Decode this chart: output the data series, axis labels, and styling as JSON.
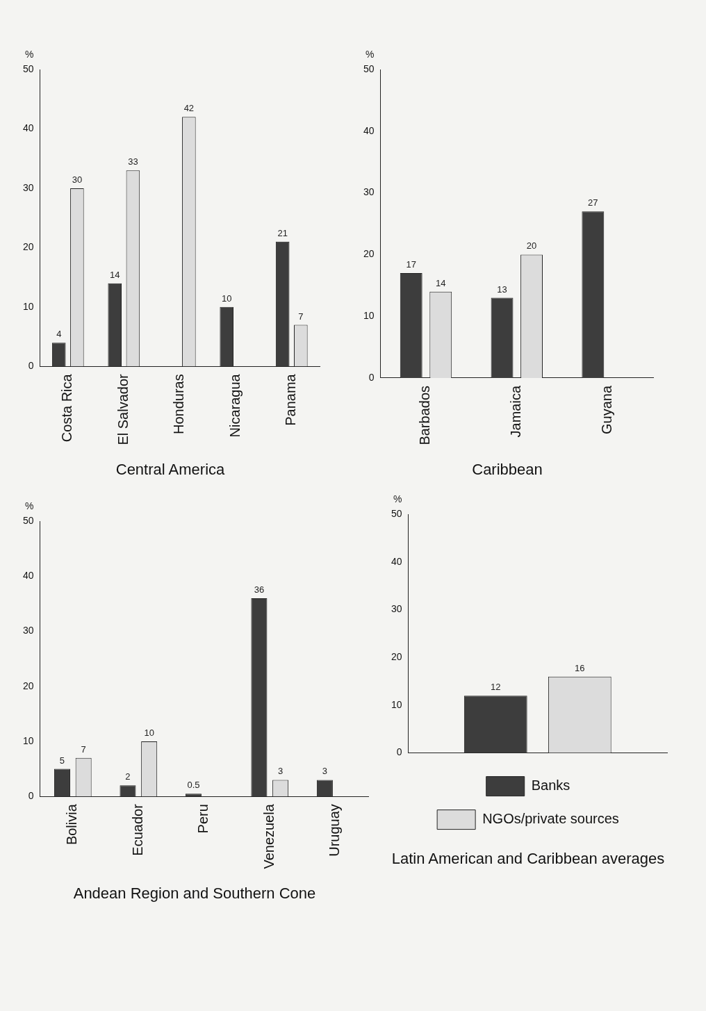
{
  "chart_data": [
    {
      "type": "bar",
      "title": "Central America",
      "ylabel": "%",
      "categories": [
        "Costa Rica",
        "El Salvador",
        "Honduras",
        "Nicaragua",
        "Panama"
      ],
      "series": [
        {
          "color": "#3d3d3d",
          "values": [
            4,
            14,
            null,
            10,
            21
          ]
        },
        {
          "color": "#dcdcdc",
          "values": [
            30,
            33,
            42,
            null,
            7
          ]
        }
      ],
      "ylim": [
        0,
        50
      ],
      "yticks": [
        0,
        10,
        20,
        30,
        40,
        50
      ],
      "data_labels": true
    },
    {
      "type": "bar",
      "title": "Caribbean",
      "ylabel": "%",
      "categories": [
        "Barbados",
        "Jamaica",
        "Guyana"
      ],
      "series": [
        {
          "color": "#3d3d3d",
          "values": [
            17,
            13,
            27
          ]
        },
        {
          "color": "#dcdcdc",
          "values": [
            14,
            20,
            null
          ]
        }
      ],
      "ylim": [
        0,
        50
      ],
      "yticks": [
        0,
        10,
        20,
        30,
        40,
        50
      ],
      "data_labels": true
    },
    {
      "type": "bar",
      "title": "Andean Region and Southern Cone",
      "ylabel": "%",
      "categories": [
        "Bolivia",
        "Ecuador",
        "Peru",
        "Venezuela",
        "Uruguay"
      ],
      "series": [
        {
          "color": "#3d3d3d",
          "values": [
            5,
            2,
            0.5,
            36,
            3
          ]
        },
        {
          "color": "#dcdcdc",
          "values": [
            7,
            10,
            null,
            3,
            null
          ]
        }
      ],
      "ylim": [
        0,
        50
      ],
      "yticks": [
        0,
        10,
        20,
        30,
        40,
        50
      ],
      "data_labels": true
    },
    {
      "type": "bar",
      "title": "Latin American and Caribbean averages",
      "ylabel": "%",
      "categories": [
        null
      ],
      "series": [
        {
          "name": "Banks",
          "color": "#3d3d3d",
          "values": [
            12
          ]
        },
        {
          "name": "NGOs/private sources",
          "color": "#dcdcdc",
          "values": [
            16
          ]
        }
      ],
      "ylim": [
        0,
        50
      ],
      "yticks": [
        0,
        10,
        20,
        30,
        40,
        50
      ],
      "data_labels": true,
      "legend": "bottom"
    }
  ]
}
